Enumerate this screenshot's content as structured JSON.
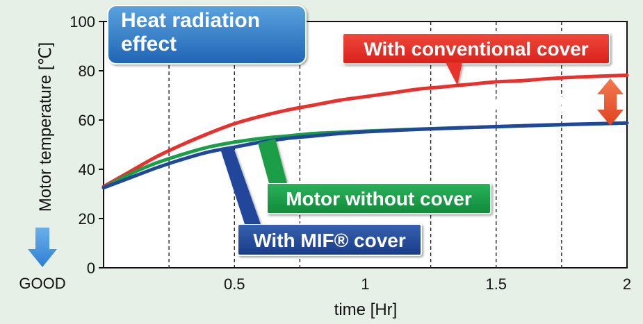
{
  "chart_data": {
    "type": "line",
    "title": "Heat radiation effect",
    "xlabel": "time [Hr]",
    "ylabel": "Motor temperature [℃]",
    "xlim": [
      0,
      2
    ],
    "ylim": [
      0,
      100
    ],
    "x_ticks": [
      0.5,
      1,
      1.5,
      2
    ],
    "x_tick_labels": [
      "0.5",
      "1",
      "1.5",
      "2"
    ],
    "y_ticks": [
      0,
      20,
      40,
      60,
      80,
      100
    ],
    "y_tick_labels": [
      "0",
      "20",
      "40",
      "60",
      "80",
      "100"
    ],
    "grid_x": [
      0.25,
      0.5,
      0.75,
      1.25,
      1.5,
      1.75
    ],
    "good_label": "GOOD",
    "series": [
      {
        "name": "With conventional cover",
        "color": "#e8302c",
        "x": [
          0,
          0.1,
          0.2,
          0.3,
          0.4,
          0.5,
          0.6,
          0.7,
          0.8,
          0.9,
          1.0,
          1.1,
          1.2,
          1.3,
          1.4,
          1.5,
          1.6,
          1.7,
          1.8,
          1.9,
          2.0
        ],
        "y": [
          33,
          39,
          45,
          50,
          54.5,
          58.5,
          61.5,
          64,
          66,
          68,
          69.5,
          71,
          72.5,
          73.5,
          74.5,
          75.5,
          76,
          76.8,
          77.4,
          77.8,
          78.2
        ]
      },
      {
        "name": "Motor without cover",
        "color": "#1a9e48",
        "x": [
          0,
          0.1,
          0.2,
          0.3,
          0.4,
          0.5,
          0.6,
          0.7,
          0.8,
          0.9,
          1.0,
          1.2,
          1.4,
          1.6,
          1.8,
          2.0
        ],
        "y": [
          32.5,
          38,
          42.5,
          46,
          49,
          51,
          52.5,
          53.5,
          54.5,
          55,
          55.5,
          56.3,
          57,
          57.6,
          58.2,
          58.8
        ]
      },
      {
        "name": "With MIF® cover",
        "color": "#20479a",
        "x": [
          0,
          0.1,
          0.2,
          0.3,
          0.4,
          0.5,
          0.6,
          0.7,
          0.8,
          0.9,
          1.0,
          1.2,
          1.4,
          1.6,
          1.8,
          2.0
        ],
        "y": [
          32.5,
          36.5,
          40.5,
          44,
          47,
          49,
          51,
          52.5,
          53.5,
          54.5,
          55.2,
          56.2,
          57,
          57.7,
          58.3,
          58.8
        ]
      }
    ],
    "annotation": {
      "text": "Around▲20℃",
      "color": "#e8302c",
      "x": 2,
      "from_y": 58.8,
      "to_y": 78.2
    }
  }
}
